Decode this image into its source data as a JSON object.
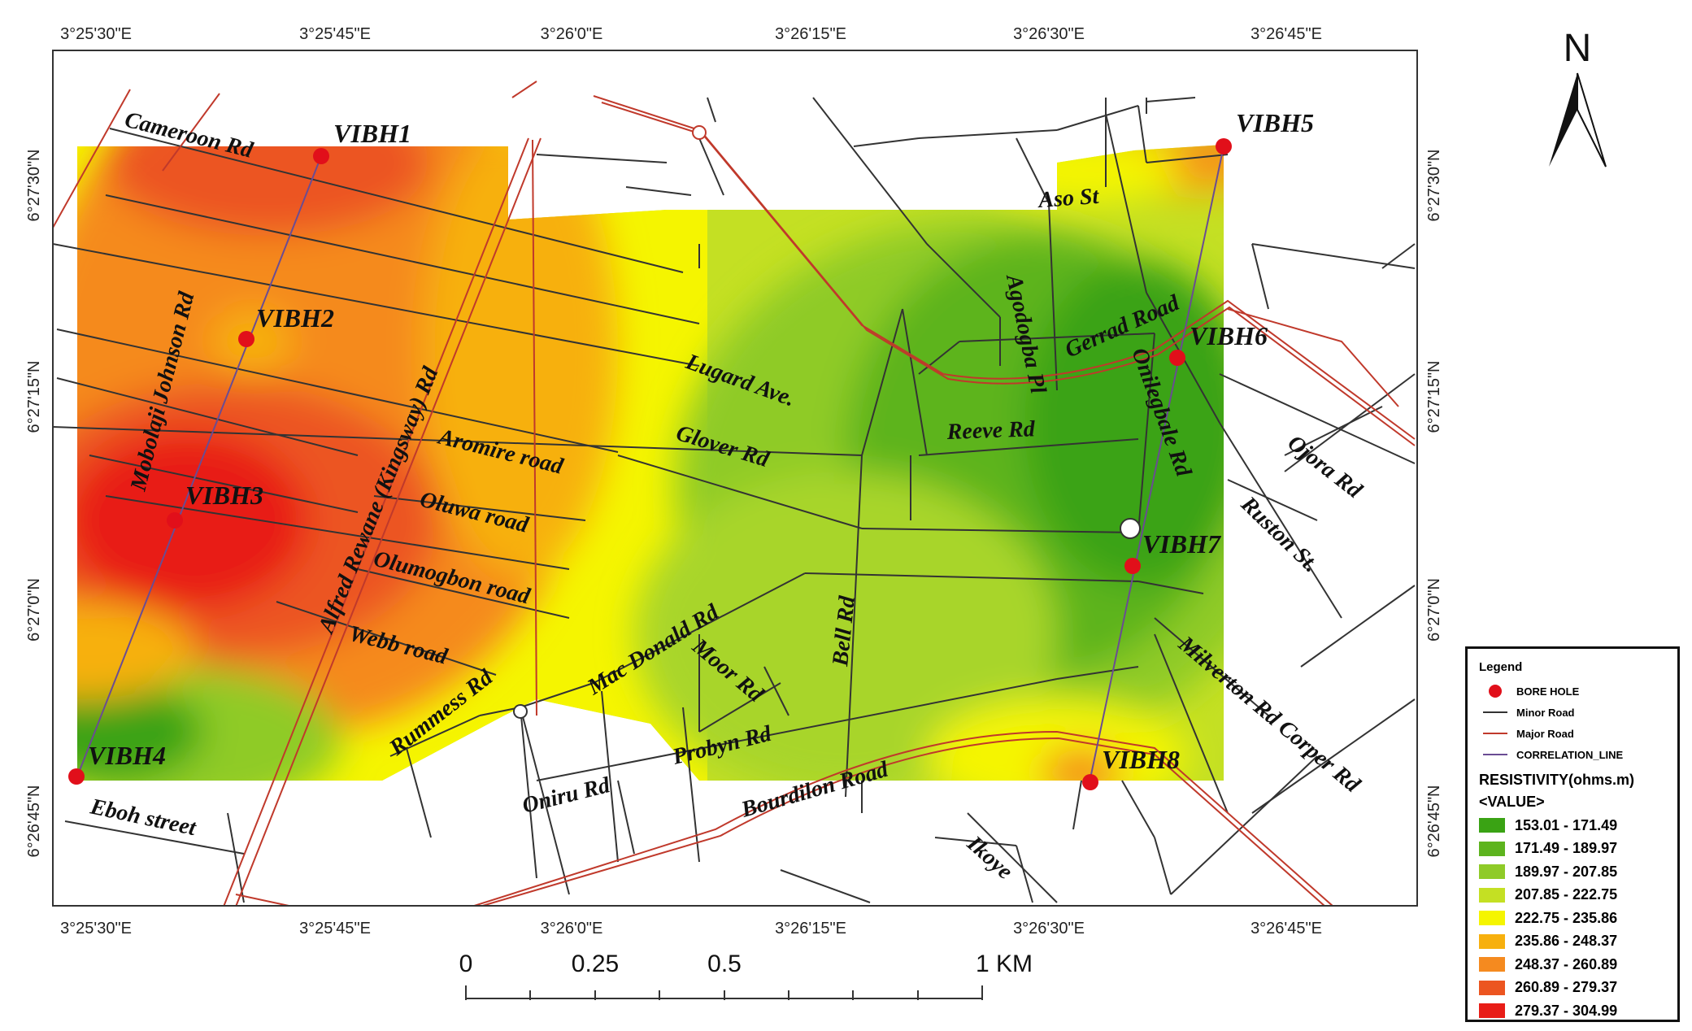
{
  "top_ticks": [
    "3°25'30\"E",
    "3°25'45\"E",
    "3°26'0\"E",
    "3°26'15\"E",
    "3°26'30\"E",
    "3°26'45\"E"
  ],
  "bottom_ticks": [
    "3°25'30\"E",
    "3°25'45\"E",
    "3°26'0\"E",
    "3°26'15\"E",
    "3°26'30\"E",
    "3°26'45\"E"
  ],
  "left_ticks": [
    "6°27'30\"N",
    "6°27'15\"N",
    "6°27'0\"N",
    "6°26'45\"N"
  ],
  "right_ticks": [
    "6°27'30\"N",
    "6°27'15\"N",
    "6°27'0\"N",
    "6°26'45\"N"
  ],
  "north": "N",
  "boreholes": [
    "VIBH1",
    "VIBH2",
    "VIBH3",
    "VIBH4",
    "VIBH5",
    "VIBH6",
    "VIBH7",
    "VIBH8"
  ],
  "roads": {
    "cameroon": "Cameroon Rd",
    "mobolaji": "Mobolaji Johnson Rd",
    "alfred": "Alfred Rewane (Kingsway) Rd",
    "aromire": "Aromire road",
    "oluwa": "Oluwa road",
    "olumogbon": "Olumogbon road",
    "webb": "Webb road",
    "rummess": "Rummess Rd",
    "eboh": "Eboh street",
    "oniru": "Oniru Rd",
    "macdonald": "Mac Donald Rd",
    "moor": "Moor Rd",
    "probyn": "Probyn Rd",
    "bell": "Bell Rd",
    "bourdilon": "Bourdilon Road",
    "lugard": "Lugard Ave.",
    "glover": "Glover Rd",
    "reeve": "Reeve Rd",
    "agodogba": "Agodogba Pl",
    "gerrad": "Gerrad Road",
    "onilegbale": "Onilegbale Rd",
    "aso": "Aso St",
    "ojora": "Ojora Rd",
    "ruston": "Ruston St.",
    "milverton": "Milverton Rd Corper Rd",
    "ikoye": "Ikoye"
  },
  "scale_bar": {
    "labels": [
      "0",
      "0.25",
      "0.5",
      "1 KM"
    ]
  },
  "legend": {
    "title": "Legend",
    "items": [
      {
        "label": "BORE HOLE",
        "symbol": "dot",
        "color": "#e10f1a"
      },
      {
        "label": "Minor Road",
        "symbol": "line",
        "color": "#333333"
      },
      {
        "label": "Major Road",
        "symbol": "line",
        "color": "#c0392b"
      },
      {
        "label": "CORRELATION_LINE",
        "symbol": "line",
        "color": "#6a4c93"
      }
    ],
    "resistivity_title": "RESISTIVITY(ohms.m)",
    "value_title": "<VALUE>",
    "classes": [
      {
        "range": "153.01 - 171.49",
        "color": "#3aa314"
      },
      {
        "range": "171.49 - 189.97",
        "color": "#5db41e"
      },
      {
        "range": "189.97 - 207.85",
        "color": "#8fcb28"
      },
      {
        "range": "207.85 - 222.75",
        "color": "#c4e023"
      },
      {
        "range": "222.75 - 235.86",
        "color": "#f5f500"
      },
      {
        "range": "235.86 - 248.37",
        "color": "#f7b00e"
      },
      {
        "range": "248.37 - 260.89",
        "color": "#f58a1f"
      },
      {
        "range": "260.89 - 279.37",
        "color": "#ec5520"
      },
      {
        "range": "279.37 - 304.99",
        "color": "#e81d17"
      }
    ]
  }
}
